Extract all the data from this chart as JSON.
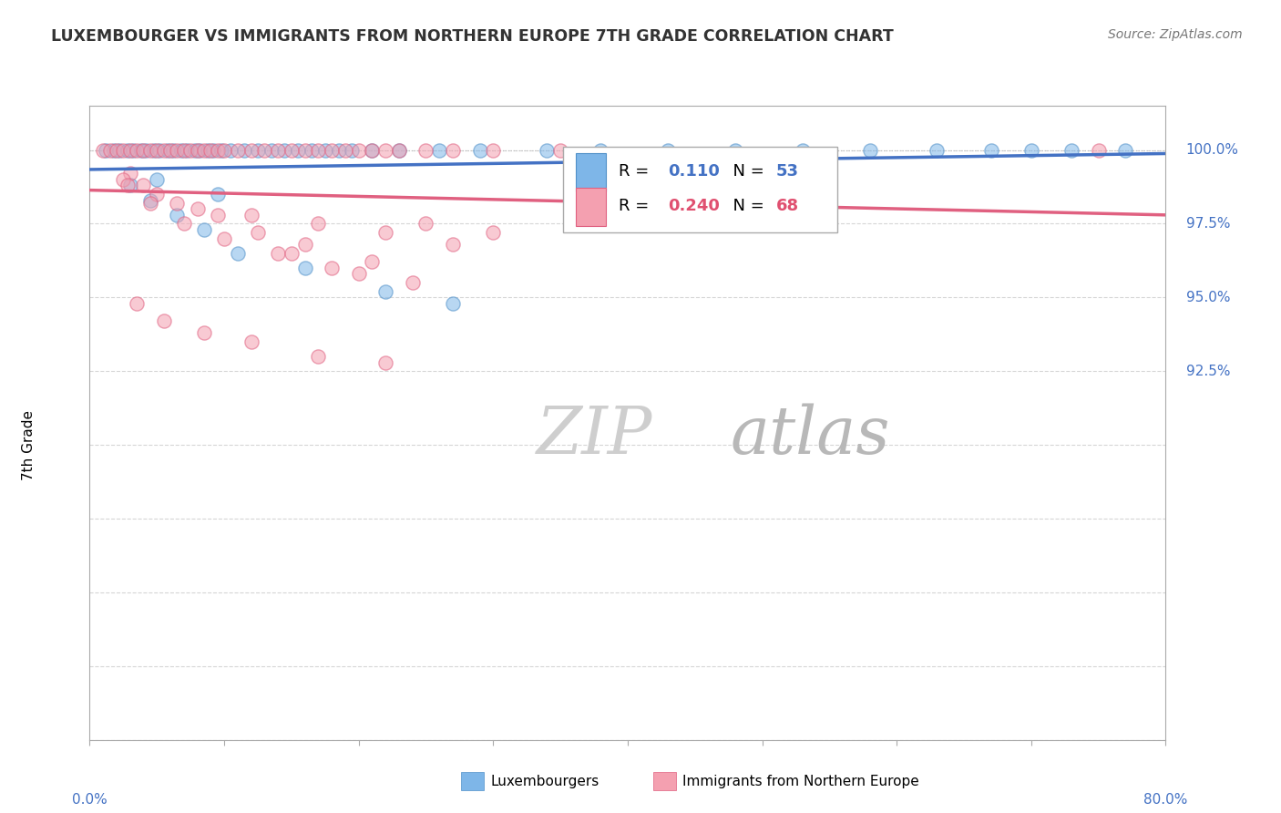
{
  "title": "LUXEMBOURGER VS IMMIGRANTS FROM NORTHERN EUROPE 7TH GRADE CORRELATION CHART",
  "source": "Source: ZipAtlas.com",
  "ylabel_label": "7th Grade",
  "xmin": 0.0,
  "xmax": 80.0,
  "ymin": 80.0,
  "ymax": 101.5,
  "yticks": [
    80.0,
    82.5,
    85.0,
    87.5,
    90.0,
    92.5,
    95.0,
    97.5,
    100.0
  ],
  "ytick_labels_right": [
    "",
    "",
    "",
    "",
    "",
    "92.5%",
    "95.0%",
    "97.5%",
    "100.0%"
  ],
  "legend_blue_R": "0.110",
  "legend_blue_N": "53",
  "legend_pink_R": "0.240",
  "legend_pink_N": "68",
  "blue_color": "#7EB6E8",
  "pink_color": "#F4A0B0",
  "blue_edge_color": "#5090C8",
  "pink_edge_color": "#E06080",
  "blue_line_color": "#4472C4",
  "pink_line_color": "#E06080",
  "grid_color": "#CCCCCC",
  "dot_line_color": "#BBBBBB",
  "watermark_zip_color": "#D8D8D8",
  "watermark_atlas_color": "#C8C8C8",
  "blue_scatter_x": [
    1.2,
    1.8,
    2.2,
    2.8,
    3.2,
    3.8,
    4.2,
    4.8,
    5.2,
    5.8,
    6.2,
    6.8,
    7.2,
    7.8,
    8.2,
    8.8,
    9.2,
    9.8,
    10.5,
    11.5,
    12.5,
    13.5,
    14.5,
    15.5,
    16.5,
    17.5,
    18.5,
    19.5,
    21.0,
    23.0,
    26.0,
    29.0,
    34.0,
    38.0,
    43.0,
    48.0,
    53.0,
    58.0,
    63.0,
    67.0,
    70.0,
    73.0,
    77.0,
    3.0,
    4.5,
    6.5,
    8.5,
    11.0,
    16.0,
    22.0,
    27.0,
    5.0,
    9.5
  ],
  "blue_scatter_y": [
    100.0,
    100.0,
    100.0,
    100.0,
    100.0,
    100.0,
    100.0,
    100.0,
    100.0,
    100.0,
    100.0,
    100.0,
    100.0,
    100.0,
    100.0,
    100.0,
    100.0,
    100.0,
    100.0,
    100.0,
    100.0,
    100.0,
    100.0,
    100.0,
    100.0,
    100.0,
    100.0,
    100.0,
    100.0,
    100.0,
    100.0,
    100.0,
    100.0,
    100.0,
    100.0,
    100.0,
    100.0,
    100.0,
    100.0,
    100.0,
    100.0,
    100.0,
    100.0,
    98.8,
    98.3,
    97.8,
    97.3,
    96.5,
    96.0,
    95.2,
    94.8,
    99.0,
    98.5
  ],
  "pink_scatter_x": [
    1.0,
    1.5,
    2.0,
    2.5,
    3.0,
    3.5,
    4.0,
    4.5,
    5.0,
    5.5,
    6.0,
    6.5,
    7.0,
    7.5,
    8.0,
    8.5,
    9.0,
    9.5,
    10.0,
    11.0,
    12.0,
    13.0,
    14.0,
    15.0,
    16.0,
    17.0,
    18.0,
    19.0,
    20.0,
    21.0,
    22.0,
    23.0,
    25.0,
    27.0,
    30.0,
    35.0,
    3.0,
    5.0,
    8.0,
    12.0,
    17.0,
    22.0,
    27.0,
    2.5,
    4.0,
    6.5,
    9.5,
    12.5,
    16.0,
    21.0,
    2.8,
    4.5,
    7.0,
    10.0,
    14.0,
    18.0,
    24.0,
    15.0,
    20.0,
    25.0,
    30.0,
    75.0,
    3.5,
    5.5,
    8.5,
    12.0,
    17.0,
    22.0
  ],
  "pink_scatter_y": [
    100.0,
    100.0,
    100.0,
    100.0,
    100.0,
    100.0,
    100.0,
    100.0,
    100.0,
    100.0,
    100.0,
    100.0,
    100.0,
    100.0,
    100.0,
    100.0,
    100.0,
    100.0,
    100.0,
    100.0,
    100.0,
    100.0,
    100.0,
    100.0,
    100.0,
    100.0,
    100.0,
    100.0,
    100.0,
    100.0,
    100.0,
    100.0,
    100.0,
    100.0,
    100.0,
    100.0,
    99.2,
    98.5,
    98.0,
    97.8,
    97.5,
    97.2,
    96.8,
    99.0,
    98.8,
    98.2,
    97.8,
    97.2,
    96.8,
    96.2,
    98.8,
    98.2,
    97.5,
    97.0,
    96.5,
    96.0,
    95.5,
    96.5,
    95.8,
    97.5,
    97.2,
    100.0,
    94.8,
    94.2,
    93.8,
    93.5,
    93.0,
    92.8
  ]
}
